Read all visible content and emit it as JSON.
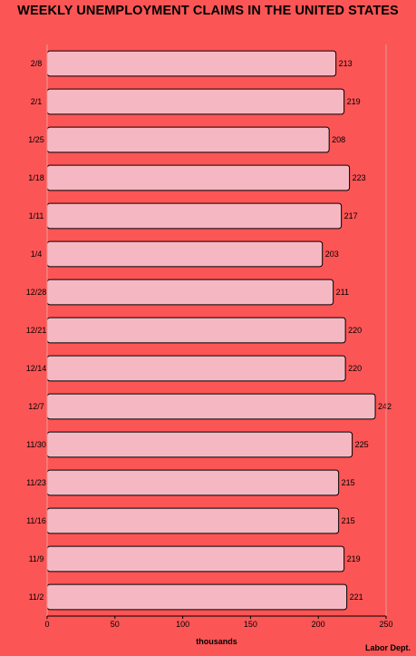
{
  "chart_data": {
    "type": "bar",
    "orientation": "horizontal",
    "title": "WEEKLY UNEMPLOYMENT CLAIMS IN THE UNITED STATES",
    "xlabel": "thousands",
    "ylabel": "",
    "source": "Labor Dept.",
    "categories": [
      "2/8",
      "2/1",
      "1/25",
      "1/18",
      "1/11",
      "1/4",
      "12/28",
      "12/21",
      "12/14",
      "12/7",
      "11/30",
      "11/23",
      "11/16",
      "11/9",
      "11/2"
    ],
    "values": [
      213,
      219,
      208,
      223,
      217,
      203,
      211,
      220,
      220,
      242,
      225,
      215,
      215,
      219,
      221
    ],
    "xlim": [
      0,
      250
    ],
    "xticks": [
      0,
      50,
      100,
      150,
      200,
      250
    ],
    "grid": false,
    "bar_color": "#f5b8c3",
    "bar_edge_color": "#000000",
    "background_color": "#fc5555"
  }
}
